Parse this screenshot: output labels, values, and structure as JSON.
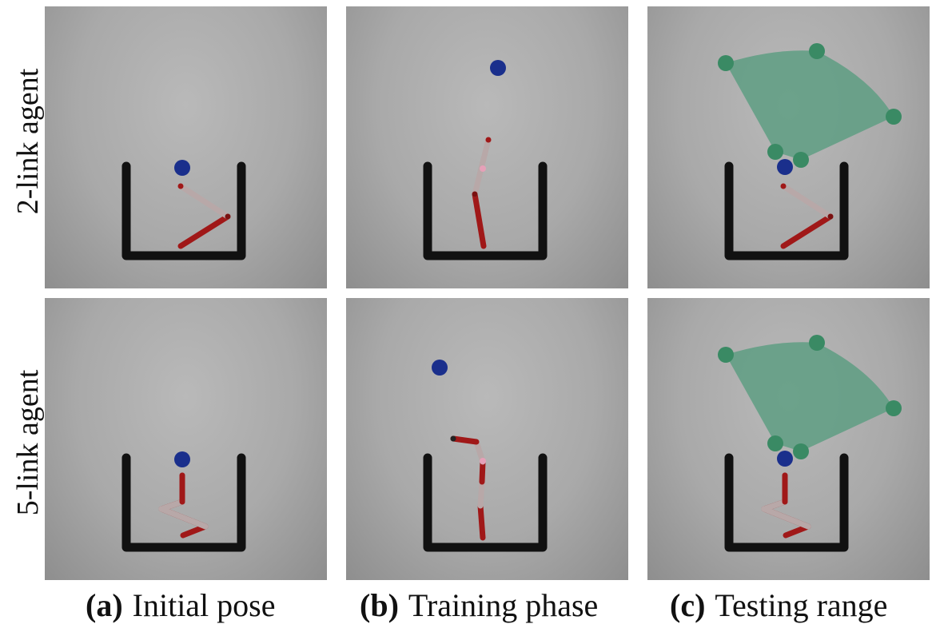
{
  "row_labels": [
    "2-link agent",
    "5-link agent"
  ],
  "captions": [
    {
      "letter": "(a)",
      "text": "Initial pose"
    },
    {
      "letter": "(b)",
      "text": "Training phase"
    },
    {
      "letter": "(c)",
      "text": "Testing range"
    }
  ],
  "colors": {
    "background": "#a9a9a9",
    "cup": "#111111",
    "link_red": "#a01818",
    "link_grey": "#b8a8a8",
    "target_ball": "#1a2f8c",
    "range_region": "#5e9e82",
    "range_ball": "#3a8a64"
  }
}
